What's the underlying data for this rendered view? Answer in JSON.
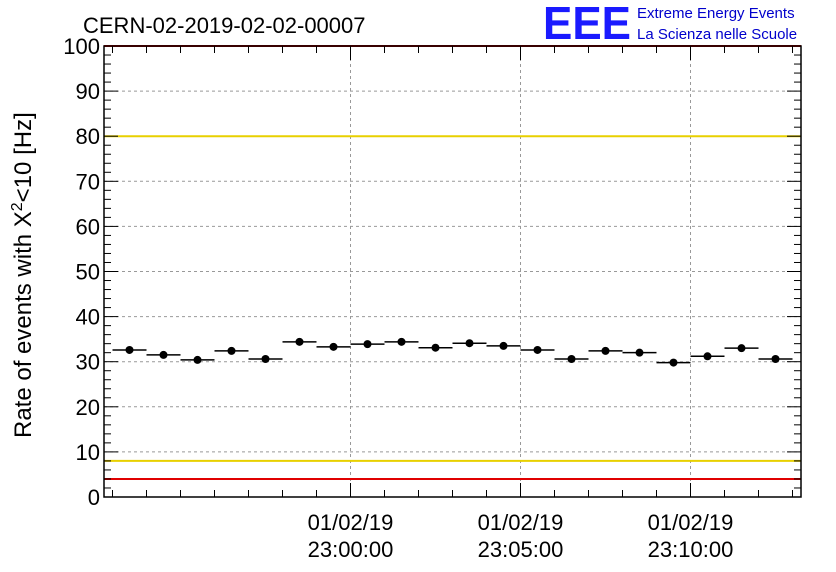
{
  "chart_data": {
    "type": "scatter",
    "title": "CERN-02-2019-02-02-00007",
    "ylabel": "Rate of events with X²<10 [Hz]",
    "ylabel_main": "Rate of events with X",
    "ylabel_sup": "2",
    "ylabel_tail": "<10 [Hz]",
    "xlabel": "",
    "ylim": [
      0,
      100
    ],
    "yticks": [
      0,
      10,
      20,
      30,
      40,
      50,
      60,
      70,
      80,
      90,
      100
    ],
    "x_unit": "minutes",
    "xlim": [
      -7.25,
      13.25
    ],
    "xticks": [
      {
        "x": 0,
        "date": "01/02/19",
        "time": "23:00:00"
      },
      {
        "x": 5,
        "date": "01/02/19",
        "time": "23:05:00"
      },
      {
        "x": 10,
        "date": "01/02/19",
        "time": "23:10:00"
      }
    ],
    "grid": true,
    "bin_width_minutes": 1,
    "series": [
      {
        "x": [
          -6.5,
          -5.5,
          -4.5,
          -3.5,
          -2.5,
          -1.5,
          -0.5,
          0.5,
          1.5,
          2.5,
          3.5,
          4.5,
          5.5,
          6.5,
          7.5,
          8.5,
          9.5,
          10.5,
          11.5,
          12.5
        ],
        "values": [
          32.6,
          31.5,
          30.4,
          32.4,
          30.6,
          34.4,
          33.3,
          33.9,
          34.4,
          33.1,
          34.1,
          33.5,
          32.6,
          30.6,
          32.4,
          32.0,
          29.8,
          31.2,
          33.0,
          30.6
        ]
      }
    ],
    "reference_lines": [
      {
        "y": 80,
        "color": "#e8d000"
      },
      {
        "y": 8,
        "color": "#e8d000"
      },
      {
        "y": 4,
        "color": "#e00000"
      },
      {
        "y": 100,
        "color": "#e00000"
      }
    ],
    "marker_color": "#000000"
  },
  "logo": {
    "text": "EEE",
    "line1": "Extreme Energy Events",
    "line2": "La Scienza nelle Scuole",
    "color": "#0000cc"
  }
}
